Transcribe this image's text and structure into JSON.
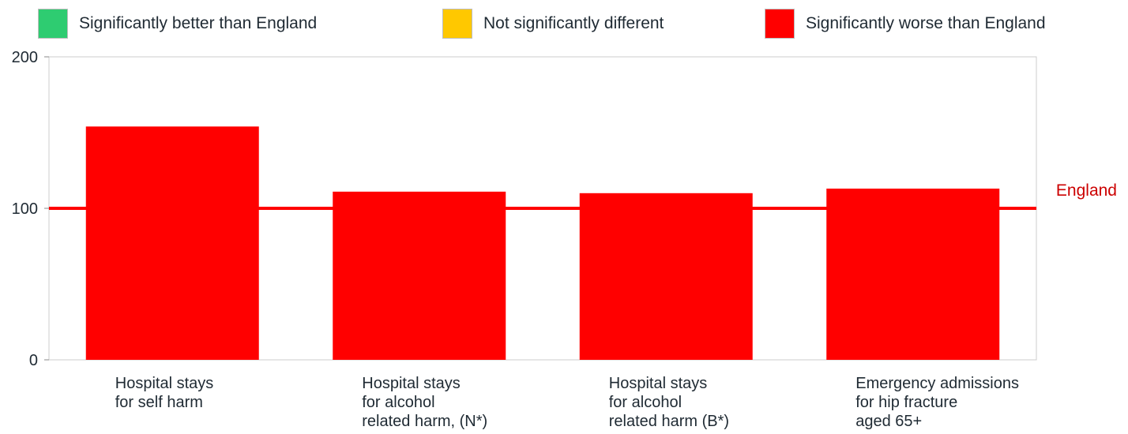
{
  "legend": {
    "items": [
      {
        "label": "Significantly better than England",
        "color": "#2ecc71"
      },
      {
        "label": "Not significantly different",
        "color": "#ffc800"
      },
      {
        "label": "Significantly worse than England",
        "color": "#ff0000"
      }
    ]
  },
  "chart_data": {
    "type": "bar",
    "categories": [
      [
        "Hospital stays",
        "for self harm"
      ],
      [
        "Hospital stays",
        "for alcohol",
        "related harm, (N*)"
      ],
      [
        "Hospital stays",
        "for alcohol",
        "related harm (B*)"
      ],
      [
        "Emergency admissions",
        "for hip fracture",
        "aged 65+"
      ]
    ],
    "values": [
      154,
      111,
      110,
      113
    ],
    "bar_colors": [
      "#ff0000",
      "#ff0000",
      "#ff0000",
      "#ff0000"
    ],
    "ylim": [
      0,
      200
    ],
    "yticks": [
      "0",
      "100",
      "200"
    ],
    "reference_line": {
      "label": "England",
      "value": 100,
      "color": "#ff0000",
      "label_color": "#cc0000"
    },
    "grid": false,
    "legend_position": "top"
  }
}
